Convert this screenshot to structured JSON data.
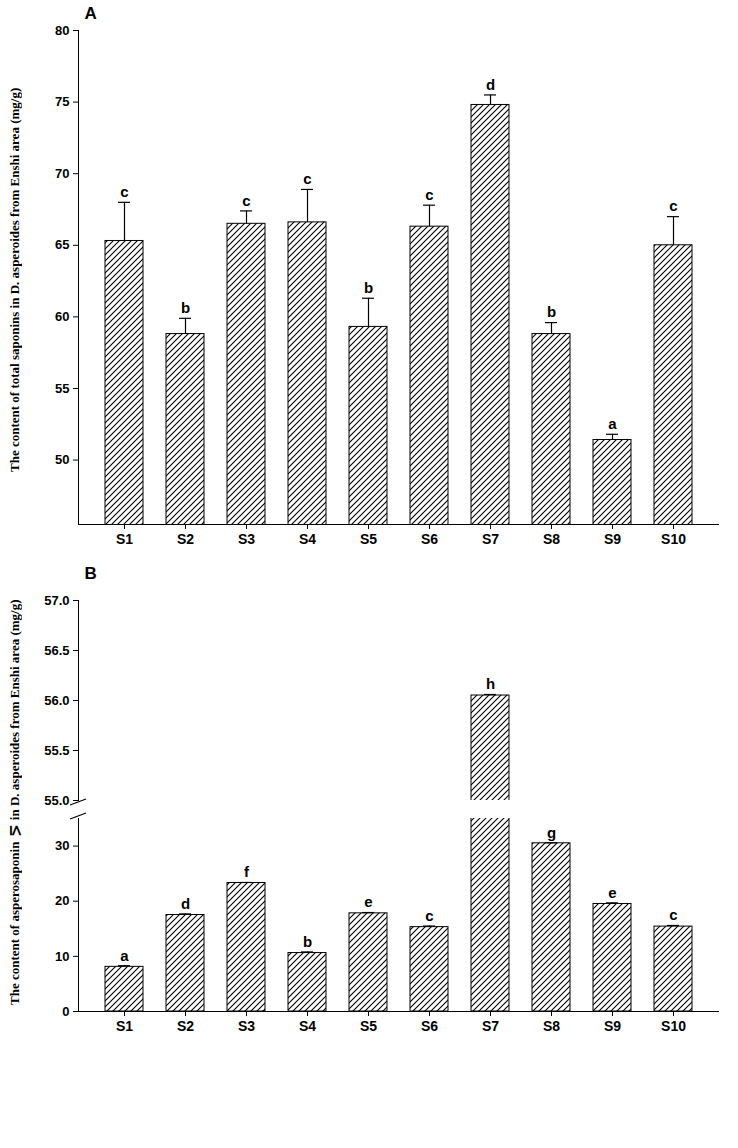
{
  "chart_data": [
    {
      "type": "bar",
      "title": "A",
      "y_label": "The content of total saponins in D. asperoides from Enshi area (mg/g)",
      "categories": [
        "S1",
        "S2",
        "S3",
        "S4",
        "S5",
        "S6",
        "S7",
        "S8",
        "S9",
        "S10"
      ],
      "values": [
        65.3,
        58.8,
        66.5,
        66.6,
        59.3,
        66.3,
        74.8,
        58.8,
        51.4,
        65.0
      ],
      "errors": [
        2.7,
        1.1,
        0.9,
        2.3,
        2.0,
        1.5,
        0.7,
        0.8,
        0.4,
        2.0
      ],
      "annotations": [
        "c",
        "b",
        "c",
        "c",
        "b",
        "c",
        "d",
        "b",
        "a",
        "c"
      ],
      "color": "#000000",
      "ylim": [
        45.5,
        80
      ],
      "yticks": [
        50,
        55,
        60,
        65,
        70,
        75,
        80
      ]
    },
    {
      "type": "bar",
      "title": "B",
      "y_label": "The content of asperosaponin Ⅵ in D. asperoides from Enshi area (mg/g)",
      "categories": [
        "S1",
        "S2",
        "S3",
        "S4",
        "S5",
        "S6",
        "S7",
        "S8",
        "S9",
        "S10"
      ],
      "values": [
        8.1,
        17.5,
        23.3,
        10.6,
        17.8,
        15.3,
        56.05,
        30.5,
        19.5,
        15.4
      ],
      "errors": [
        0.2,
        0.2,
        0.1,
        0.2,
        0.15,
        0.2,
        0.01,
        0.1,
        0.2,
        0.2
      ],
      "annotations": [
        "a",
        "d",
        "f",
        "b",
        "e",
        "c",
        "h",
        "g",
        "e",
        "c"
      ],
      "color": "#000000",
      "ylim": [
        0,
        57
      ],
      "y_break": [
        35,
        55
      ],
      "yticks": [
        0,
        10,
        20,
        30,
        {
          "value": 55,
          "label": "55.0"
        },
        {
          "value": 55.5,
          "label": "55.5"
        },
        {
          "value": 56,
          "label": "56.0"
        },
        {
          "value": 56.5,
          "label": "56.5"
        },
        {
          "value": 57,
          "label": "57.0"
        }
      ]
    }
  ]
}
